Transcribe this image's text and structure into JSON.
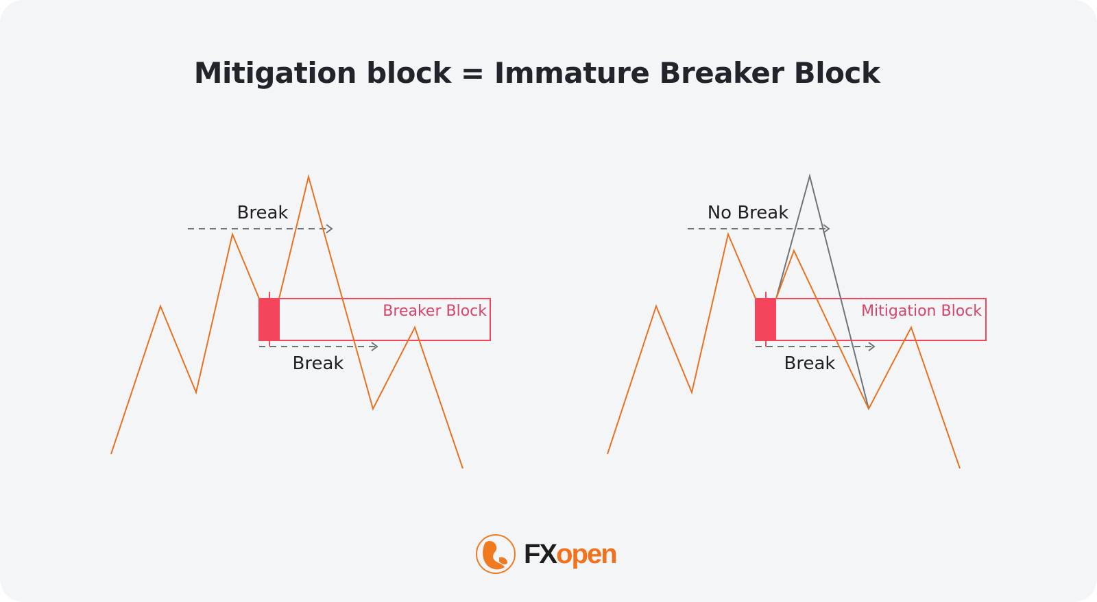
{
  "title": "Mitigation block = Immature Breaker Block",
  "colors": {
    "price_line": "#e8711f",
    "block": "#f5455c",
    "dashed": "#6e7177",
    "failed_path": "#6e737a",
    "background": "#f4f5f7"
  },
  "left_panel": {
    "top_label": "Break",
    "bottom_label": "Break",
    "block_label": "Breaker Block"
  },
  "right_panel": {
    "top_label": "No Break",
    "bottom_label": "Break",
    "block_label": "Mitigation Block"
  },
  "logo": {
    "text_dark": "FX",
    "text_accent": "open"
  }
}
